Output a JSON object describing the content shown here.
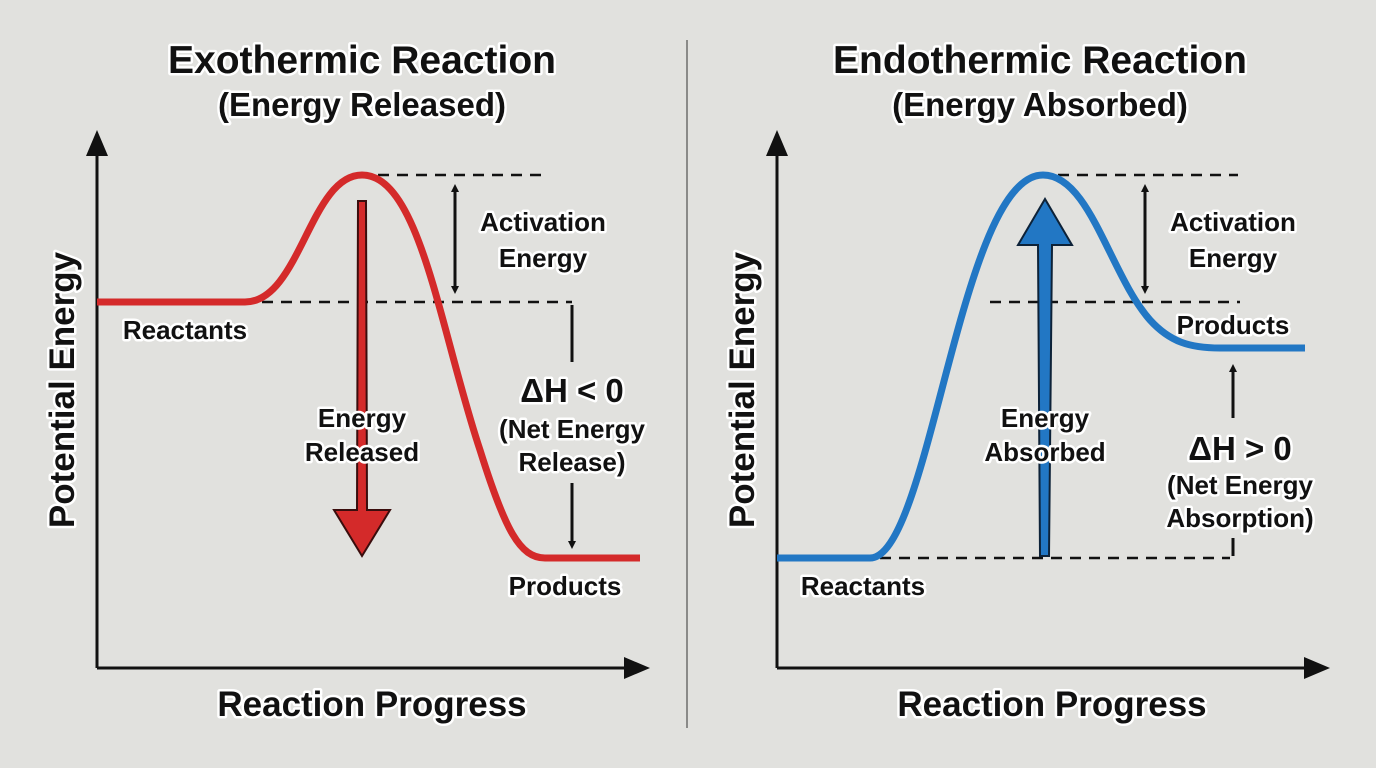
{
  "colors": {
    "background": "#e1e1de",
    "exothermic": "#d42a2a",
    "endothermic": "#2277c4",
    "divider": "#8a8a88"
  },
  "exothermic": {
    "title": "Exothermic Reaction",
    "subtitle": "(Energy Released)",
    "y_axis_label": "Potential Energy",
    "x_axis_label": "Reaction Progress",
    "reactants": "Reactants",
    "products": "Products",
    "activation": [
      "Activation",
      "Energy"
    ],
    "arrow_label": [
      "Energy",
      "Released"
    ],
    "delta_h": "ΔH < 0",
    "delta_note": [
      "(Net Energy",
      "Release)"
    ]
  },
  "endothermic": {
    "title": "Endothermic Reaction",
    "subtitle": "(Energy Absorbed)",
    "y_axis_label": "Potential Energy",
    "x_axis_label": "Reaction Progress",
    "reactants": "Reactants",
    "products": "Products",
    "activation": [
      "Activation",
      "Energy"
    ],
    "arrow_label": [
      "Energy",
      "Absorbed"
    ],
    "delta_h": "ΔH > 0",
    "delta_note": [
      "(Net Energy",
      "Absorption)"
    ]
  }
}
